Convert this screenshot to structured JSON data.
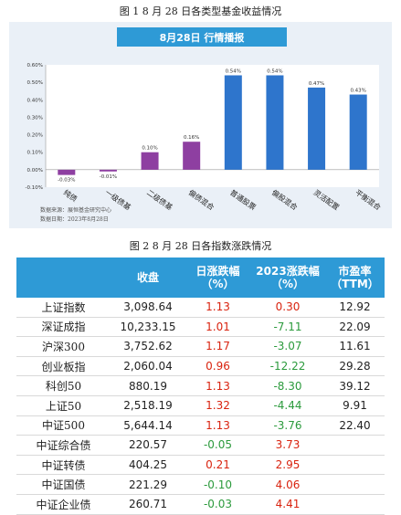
{
  "figure1_caption": "图 1   8 月 28 日各类型基金收益情况",
  "figure2_caption": "图 2   8 月 28 日各指数涨跌情况",
  "chart_data": {
    "type": "bar",
    "title": "8月28日  行情播报",
    "categories": [
      "纯债",
      "一级债基",
      "二级债基",
      "偏债混合",
      "普通股票",
      "偏股混合",
      "灵活配置",
      "平衡混合"
    ],
    "values": [
      -0.03,
      -0.01,
      0.1,
      0.16,
      0.54,
      0.54,
      0.47,
      0.43
    ],
    "value_labels": [
      "-0.03%",
      "-0.01%",
      "0.10%",
      "0.16%",
      "0.54%",
      "0.54%",
      "0.47%",
      "0.43%"
    ],
    "colors": [
      "#8e3fa1",
      "#8e3fa1",
      "#8e3fa1",
      "#8e3fa1",
      "#2e75cc",
      "#2e75cc",
      "#2e75cc",
      "#2e75cc"
    ],
    "ylim": [
      -0.1,
      0.6
    ],
    "yticks": [
      -0.1,
      0.0,
      0.1,
      0.2,
      0.3,
      0.4,
      0.5,
      0.6
    ],
    "ytick_labels": [
      "-0.10%",
      "0.00%",
      "0.10%",
      "0.20%",
      "0.30%",
      "0.40%",
      "0.50%",
      "0.60%"
    ],
    "xlabel": "",
    "ylabel": "",
    "grid": false,
    "legend": "none"
  },
  "source": {
    "line1": "数据来源：展恒基金研究中心",
    "line2": "数据日期：2023年8月28日"
  },
  "table": {
    "headers": {
      "name": "",
      "close": "收盘",
      "day_change": "日涨跌幅",
      "day_change_unit": "（%）",
      "ytd_change": "2023涨跌幅",
      "ytd_change_unit": "（%）",
      "pe": "市盈率",
      "pe_unit": "（TTM）"
    },
    "rows": [
      {
        "name": "上证指数",
        "close": "3,098.64",
        "day": "1.13",
        "day_sign": "pos",
        "ytd": "0.30",
        "ytd_sign": "pos",
        "pe": "12.92"
      },
      {
        "name": "深证成指",
        "close": "10,233.15",
        "day": "1.01",
        "day_sign": "pos",
        "ytd": "-7.11",
        "ytd_sign": "neg",
        "pe": "22.09"
      },
      {
        "name": "沪深300",
        "close": "3,752.62",
        "day": "1.17",
        "day_sign": "pos",
        "ytd": "-3.07",
        "ytd_sign": "neg",
        "pe": "11.61"
      },
      {
        "name": "创业板指",
        "close": "2,060.04",
        "day": "0.96",
        "day_sign": "pos",
        "ytd": "-12.22",
        "ytd_sign": "neg",
        "pe": "29.28"
      },
      {
        "name": "科创50",
        "close": "880.19",
        "day": "1.13",
        "day_sign": "pos",
        "ytd": "-8.30",
        "ytd_sign": "neg",
        "pe": "39.12"
      },
      {
        "name": "上证50",
        "close": "2,518.19",
        "day": "1.32",
        "day_sign": "pos",
        "ytd": "-4.44",
        "ytd_sign": "neg",
        "pe": "9.91"
      },
      {
        "name": "中证500",
        "close": "5,644.14",
        "day": "1.13",
        "day_sign": "pos",
        "ytd": "-3.76",
        "ytd_sign": "neg",
        "pe": "22.40"
      },
      {
        "name": "中证综合债",
        "close": "220.57",
        "day": "-0.05",
        "day_sign": "neg",
        "ytd": "3.73",
        "ytd_sign": "pos",
        "pe": ""
      },
      {
        "name": "中证转债",
        "close": "404.25",
        "day": "0.21",
        "day_sign": "pos",
        "ytd": "2.95",
        "ytd_sign": "pos",
        "pe": ""
      },
      {
        "name": "中证国债",
        "close": "221.29",
        "day": "-0.10",
        "day_sign": "neg",
        "ytd": "4.06",
        "ytd_sign": "pos",
        "pe": ""
      },
      {
        "name": "中证企业债",
        "close": "260.71",
        "day": "-0.03",
        "day_sign": "neg",
        "ytd": "4.41",
        "ytd_sign": "pos",
        "pe": ""
      }
    ]
  }
}
